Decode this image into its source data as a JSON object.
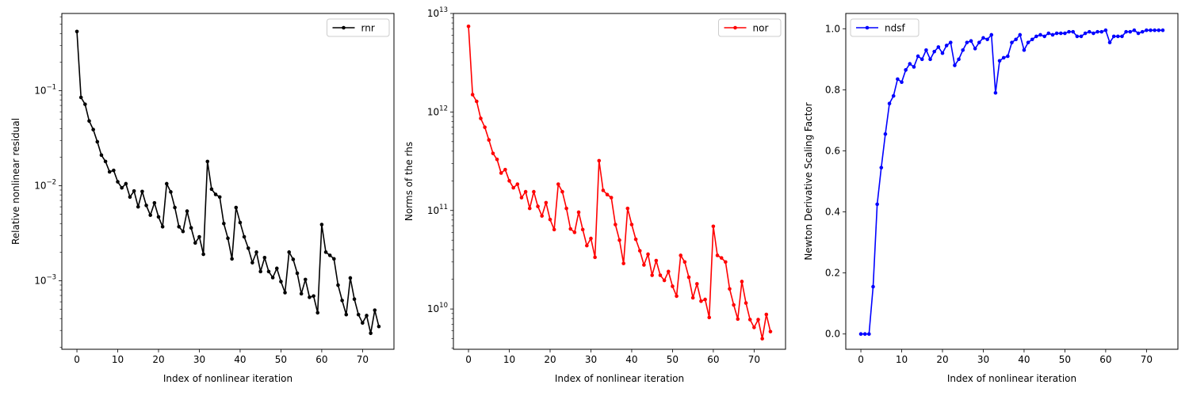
{
  "chart_data": [
    {
      "type": "line",
      "xlabel": "Index of nonlinear iteration",
      "ylabel": "Relative nonlinear residual",
      "yscale": "log",
      "xlim": [
        -3.7,
        77.7
      ],
      "ylim": [
        0.00019,
        0.65
      ],
      "xticks": [
        0,
        10,
        20,
        30,
        40,
        50,
        60,
        70
      ],
      "yticks": [
        {
          "value": 0.001,
          "base": "10",
          "exp": "−3"
        },
        {
          "value": 0.01,
          "base": "10",
          "exp": "−2"
        },
        {
          "value": 0.1,
          "base": "10",
          "exp": "−1"
        }
      ],
      "grid": false,
      "legend": "top-right",
      "series": [
        {
          "name": "rnr",
          "color": "#000000",
          "marker": "circle",
          "values": [
            0.42,
            0.085,
            0.072,
            0.048,
            0.039,
            0.029,
            0.021,
            0.018,
            0.014,
            0.0145,
            0.011,
            0.0095,
            0.0105,
            0.0076,
            0.0088,
            0.006,
            0.0087,
            0.0062,
            0.0049,
            0.0066,
            0.0047,
            0.0037,
            0.0105,
            0.0086,
            0.0059,
            0.0037,
            0.0033,
            0.0054,
            0.0036,
            0.0025,
            0.0029,
            0.0019,
            0.018,
            0.0092,
            0.0081,
            0.0076,
            0.004,
            0.0028,
            0.0017,
            0.0059,
            0.0041,
            0.0029,
            0.0022,
            0.00155,
            0.002,
            0.00125,
            0.00175,
            0.00125,
            0.00108,
            0.00135,
            0.00098,
            0.00075,
            0.002,
            0.00168,
            0.0012,
            0.00073,
            0.00103,
            0.00067,
            0.00069,
            0.00046,
            0.0039,
            0.002,
            0.00185,
            0.0017,
            0.0009,
            0.00062,
            0.00044,
            0.00107,
            0.00064,
            0.00044,
            0.00036,
            0.00043,
            0.00028,
            0.00049,
            0.00033
          ]
        }
      ]
    },
    {
      "type": "line",
      "xlabel": "Index of nonlinear iteration",
      "ylabel": "Norms of the rhs",
      "yscale": "log",
      "xlim": [
        -3.7,
        77.7
      ],
      "ylim": [
        3900000000.0,
        10000000000000.0
      ],
      "xticks": [
        0,
        10,
        20,
        30,
        40,
        50,
        60,
        70
      ],
      "yticks": [
        {
          "value": 10000000000.0,
          "base": "10",
          "exp": "10"
        },
        {
          "value": 100000000000.0,
          "base": "10",
          "exp": "11"
        },
        {
          "value": 1000000000000.0,
          "base": "10",
          "exp": "12"
        },
        {
          "value": 10000000000000.0,
          "base": "10",
          "exp": "13"
        }
      ],
      "grid": false,
      "legend": "top-right",
      "series": [
        {
          "name": "nor",
          "color": "#ff0000",
          "marker": "circle",
          "values": [
            7400000000000.0,
            1500000000000.0,
            1280000000000.0,
            860000000000.0,
            700000000000.0,
            520000000000.0,
            380000000000.0,
            330000000000.0,
            240000000000.0,
            260000000000.0,
            200000000000.0,
            170000000000.0,
            185000000000.0,
            135000000000.0,
            155000000000.0,
            105000000000.0,
            155000000000.0,
            110000000000.0,
            88000000000.0,
            120000000000.0,
            81000000000.0,
            64000000000.0,
            185000000000.0,
            155000000000.0,
            105000000000.0,
            65000000000.0,
            60000000000.0,
            96000000000.0,
            64000000000.0,
            44000000000.0,
            52000000000.0,
            33500000000.0,
            320000000000.0,
            160000000000.0,
            145000000000.0,
            135000000000.0,
            72000000000.0,
            50000000000.0,
            29000000000.0,
            105000000000.0,
            72000000000.0,
            51000000000.0,
            39000000000.0,
            28000000000.0,
            36000000000.0,
            22000000000.0,
            31000000000.0,
            22000000000.0,
            19500000000.0,
            24000000000.0,
            17000000000.0,
            13500000000.0,
            35000000000.0,
            30000000000.0,
            21000000000.0,
            13000000000.0,
            18000000000.0,
            12000000000.0,
            12500000000.0,
            8200000000.0,
            69000000000.0,
            35000000000.0,
            33000000000.0,
            30000000000.0,
            16000000000.0,
            11000000000.0,
            7900000000.0,
            19000000000.0,
            11500000000.0,
            7800000000.0,
            6500000000.0,
            7800000000.0,
            5000000000.0,
            8800000000.0,
            5900000000.0
          ]
        }
      ]
    },
    {
      "type": "line",
      "xlabel": "Index of nonlinear iteration",
      "ylabel": "Newton Derivative Scaling Factor",
      "yscale": "linear",
      "xlim": [
        -3.7,
        77.7
      ],
      "ylim": [
        -0.05,
        1.05
      ],
      "xticks": [
        0,
        10,
        20,
        30,
        40,
        50,
        60,
        70
      ],
      "yticks": [
        {
          "value": 0.0,
          "label": "0.0"
        },
        {
          "value": 0.2,
          "label": "0.2"
        },
        {
          "value": 0.4,
          "label": "0.4"
        },
        {
          "value": 0.6,
          "label": "0.6"
        },
        {
          "value": 0.8,
          "label": "0.8"
        },
        {
          "value": 1.0,
          "label": "1.0"
        }
      ],
      "grid": false,
      "legend": "top-left",
      "series": [
        {
          "name": "ndsf",
          "color": "#0000ff",
          "marker": "circle",
          "values": [
            0.0,
            0.0,
            0.0,
            0.155,
            0.425,
            0.545,
            0.655,
            0.755,
            0.78,
            0.835,
            0.825,
            0.865,
            0.885,
            0.875,
            0.91,
            0.9,
            0.93,
            0.9,
            0.925,
            0.94,
            0.92,
            0.945,
            0.955,
            0.88,
            0.9,
            0.93,
            0.955,
            0.96,
            0.935,
            0.955,
            0.97,
            0.965,
            0.98,
            0.79,
            0.895,
            0.905,
            0.91,
            0.955,
            0.965,
            0.98,
            0.93,
            0.955,
            0.965,
            0.975,
            0.98,
            0.975,
            0.985,
            0.98,
            0.985,
            0.985,
            0.985,
            0.99,
            0.99,
            0.975,
            0.975,
            0.985,
            0.99,
            0.985,
            0.99,
            0.99,
            0.995,
            0.955,
            0.975,
            0.975,
            0.975,
            0.99,
            0.99,
            0.995,
            0.985,
            0.99,
            0.995,
            0.995,
            0.995,
            0.995,
            0.995
          ]
        }
      ]
    }
  ]
}
